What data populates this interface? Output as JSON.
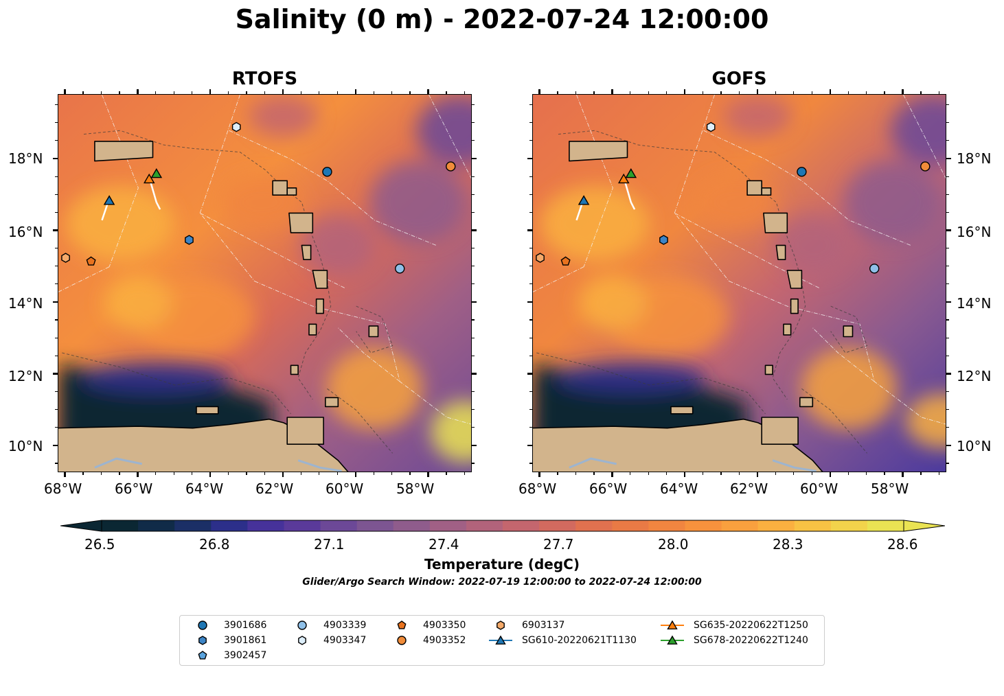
{
  "title": "Salinity (0 m) - 2022-07-24 12:00:00",
  "panels": [
    {
      "title": "RTOFS"
    },
    {
      "title": "GOFS"
    }
  ],
  "lon_ticks": [
    "68°W",
    "66°W",
    "64°W",
    "62°W",
    "60°W",
    "58°W"
  ],
  "lat_ticks": [
    "18°N",
    "16°N",
    "14°N",
    "12°N",
    "10°N"
  ],
  "colorbar": {
    "ticks": [
      "26.5",
      "26.8",
      "27.1",
      "27.4",
      "27.7",
      "28.0",
      "28.3",
      "28.6"
    ],
    "label": "Temperature (degC)",
    "subtitle": "Glider/Argo Search Window: 2022-07-19 12:00:00 to 2022-07-24 12:00:00",
    "range": [
      26.5,
      28.6
    ],
    "extend": "both"
  },
  "legend": {
    "items": [
      {
        "label": "3901686",
        "marker": "circle",
        "color": "#1f77b4"
      },
      {
        "label": "3901861",
        "marker": "hexagon",
        "color": "#3d85c6"
      },
      {
        "label": "3902457",
        "marker": "pentagon",
        "color": "#5aa3dd"
      },
      {
        "label": "4903339",
        "marker": "circle",
        "color": "#8fc0e8"
      },
      {
        "label": "4903347",
        "marker": "hexagon",
        "color": "#ddeefa"
      },
      {
        "label": "4903350",
        "marker": "pentagon",
        "color": "#e8731f"
      },
      {
        "label": "4903352",
        "marker": "circle",
        "color": "#f08c3a"
      },
      {
        "label": "6903137",
        "marker": "hexagon",
        "color": "#f5aa6a"
      },
      {
        "label": "SG610-20220621T1130",
        "marker": "triangle",
        "color": "#1f77b4"
      },
      {
        "label": "SG635-20220622T1250",
        "marker": "triangle",
        "color": "#ff7f0e"
      },
      {
        "label": "SG678-20220622T1240",
        "marker": "triangle",
        "color": "#2ca02c"
      }
    ]
  },
  "map_extent": {
    "lon": [
      -68.2,
      -56.8
    ],
    "lat": [
      9.25,
      19.8
    ]
  },
  "colors": {
    "land": "#d2b48c",
    "low_salinity": "#0b2733",
    "mid": "#e8704a",
    "high": "#f9d049"
  }
}
